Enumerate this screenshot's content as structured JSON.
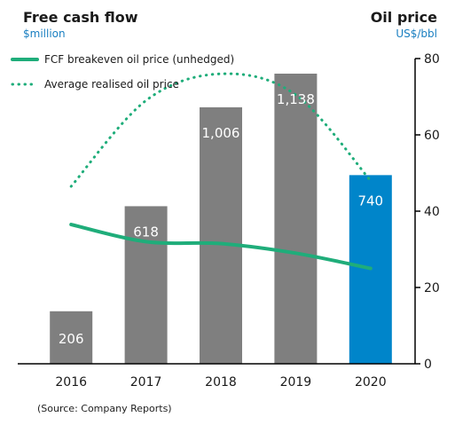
{
  "header": {
    "left_title": "Free cash flow",
    "left_unit": "$million",
    "right_title": "Oil price",
    "right_unit": "US$/bbl"
  },
  "source_note": "(Source: Company Reports)",
  "colors": {
    "bar_default": "#7f7f7f",
    "bar_highlight": "#0085ca",
    "line_series": "#1fad7a",
    "unit_text": "#1a7fc1"
  },
  "chart_data": {
    "type": "bar",
    "categories": [
      "2016",
      "2017",
      "2018",
      "2019",
      "2020"
    ],
    "bar_values": [
      206,
      618,
      1006,
      1138,
      740
    ],
    "bar_labels": [
      "206",
      "618",
      "1,006",
      "1,138",
      "740"
    ],
    "highlight_category": "2020",
    "left_axis": {
      "label": "Free cash flow",
      "unit": "$million",
      "ticks_shown": false
    },
    "right_axis": {
      "label": "Oil price",
      "unit": "US$/bbl",
      "ylim": [
        0,
        80
      ],
      "ticks": [
        "0",
        "20",
        "40",
        "60",
        "80"
      ]
    },
    "series": [
      {
        "name": "FCF breakeven oil price (unhedged)",
        "style": "solid",
        "axis": "right",
        "values": [
          36.5,
          32,
          31.5,
          29,
          25
        ]
      },
      {
        "name": "Average realised oil price",
        "style": "dotted",
        "axis": "right",
        "values": [
          46.5,
          69,
          76,
          70.5,
          48
        ]
      }
    ],
    "legend_position": "top-left",
    "grid": false
  }
}
